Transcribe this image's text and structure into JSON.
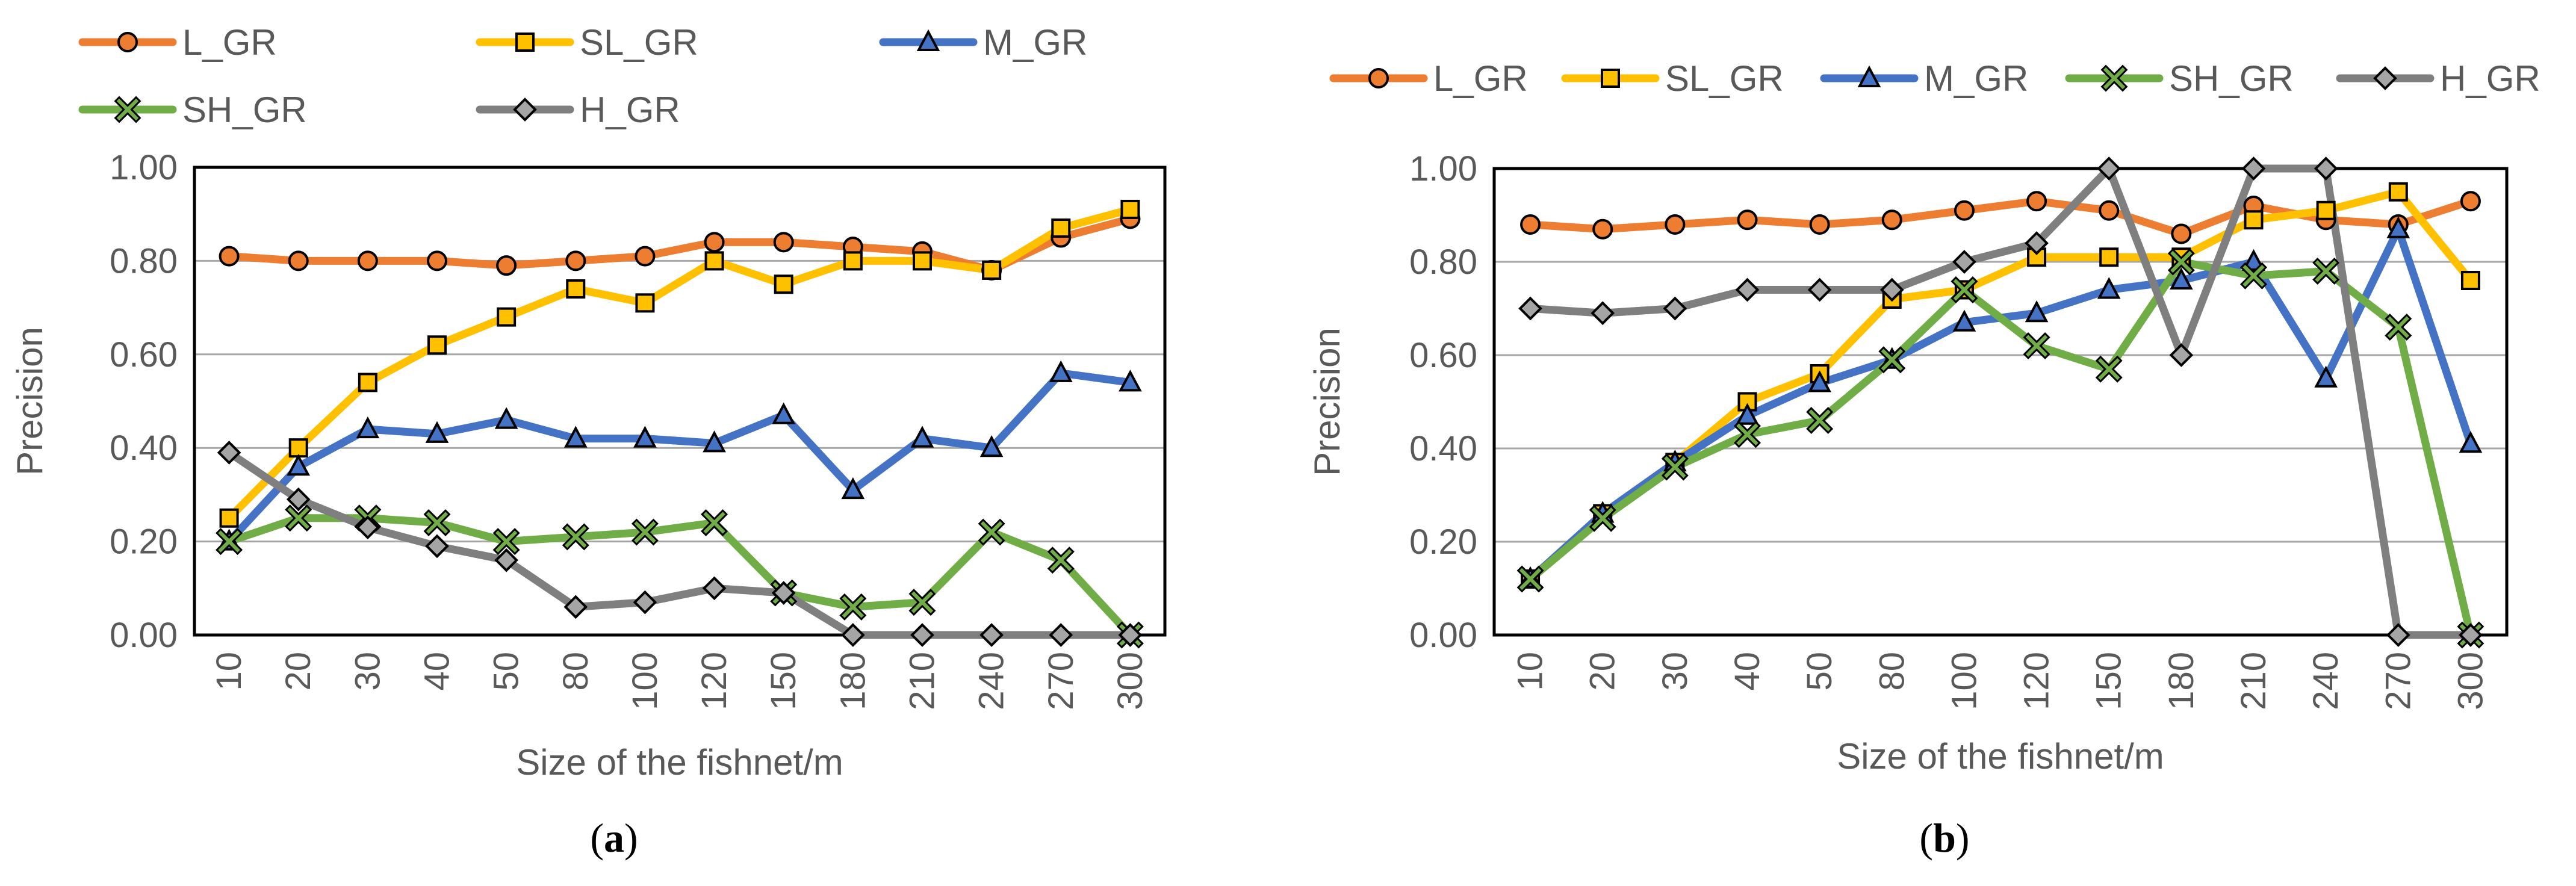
{
  "figure": {
    "caption_a": {
      "open": "(",
      "letter": "a",
      "close": ")"
    },
    "caption_b": {
      "open": "(",
      "letter": "b",
      "close": ")"
    }
  },
  "colors": {
    "L_GR": "#ED7D31",
    "SL_GR": "#FFC000",
    "M_GR": "#4472C4",
    "SH_GR": "#70AD47",
    "H_GR": "#7F7F7F",
    "marker_fill_L": "#ED7D31",
    "marker_fill_SL": "#FFC000",
    "marker_fill_M": "#4472C4",
    "marker_fill_SH": "#70AD47",
    "marker_fill_H": "#A5A5A5",
    "gridline": "#A6A6A6",
    "frame": "#000000"
  },
  "chart_data": [
    {
      "id": "a",
      "type": "line",
      "title": "",
      "xlabel": "Size of the fishnet/m",
      "ylabel": "Precision",
      "ylim": [
        0,
        1
      ],
      "yticks": [
        "0.00",
        "0.20",
        "0.40",
        "0.60",
        "0.80",
        "1.00"
      ],
      "categories": [
        "10",
        "20",
        "30",
        "40",
        "50",
        "80",
        "100",
        "120",
        "150",
        "180",
        "210",
        "240",
        "270",
        "300"
      ],
      "legend_position": "top",
      "series": [
        {
          "name": "L_GR",
          "marker": "circle",
          "values": [
            0.81,
            0.8,
            0.8,
            0.8,
            0.79,
            0.8,
            0.81,
            0.84,
            0.84,
            0.83,
            0.82,
            0.78,
            0.85,
            0.89
          ]
        },
        {
          "name": "SL_GR",
          "marker": "square",
          "values": [
            0.25,
            0.4,
            0.54,
            0.62,
            0.68,
            0.74,
            0.71,
            0.8,
            0.75,
            0.8,
            0.8,
            0.78,
            0.87,
            0.91
          ]
        },
        {
          "name": "M_GR",
          "marker": "triangle",
          "values": [
            0.2,
            0.36,
            0.44,
            0.43,
            0.46,
            0.42,
            0.42,
            0.41,
            0.47,
            0.31,
            0.42,
            0.4,
            0.56,
            0.54
          ]
        },
        {
          "name": "SH_GR",
          "marker": "x",
          "values": [
            0.2,
            0.25,
            0.25,
            0.24,
            0.2,
            0.21,
            0.22,
            0.24,
            0.09,
            0.06,
            0.07,
            0.22,
            0.16,
            0.0
          ]
        },
        {
          "name": "H_GR",
          "marker": "diamond",
          "values": [
            0.39,
            0.29,
            0.23,
            0.19,
            0.16,
            0.06,
            0.07,
            0.1,
            0.09,
            0.0,
            0.0,
            0.0,
            0.0,
            0.0
          ]
        }
      ]
    },
    {
      "id": "b",
      "type": "line",
      "title": "",
      "xlabel": "Size of the fishnet/m",
      "ylabel": "Precision",
      "ylim": [
        0,
        1
      ],
      "yticks": [
        "0.00",
        "0.20",
        "0.40",
        "0.60",
        "0.80",
        "1.00"
      ],
      "categories": [
        "10",
        "20",
        "30",
        "40",
        "50",
        "80",
        "100",
        "120",
        "150",
        "180",
        "210",
        "240",
        "270",
        "300"
      ],
      "legend_position": "top",
      "series": [
        {
          "name": "L_GR",
          "marker": "circle",
          "values": [
            0.88,
            0.87,
            0.88,
            0.89,
            0.88,
            0.89,
            0.91,
            0.93,
            0.91,
            0.86,
            0.92,
            0.89,
            0.88,
            0.93
          ]
        },
        {
          "name": "SL_GR",
          "marker": "square",
          "values": [
            0.12,
            0.26,
            0.37,
            0.5,
            0.56,
            0.72,
            0.74,
            0.81,
            0.81,
            0.81,
            0.89,
            0.91,
            0.95,
            0.76
          ]
        },
        {
          "name": "M_GR",
          "marker": "triangle",
          "values": [
            0.12,
            0.26,
            0.37,
            0.47,
            0.54,
            0.59,
            0.67,
            0.69,
            0.74,
            0.76,
            0.8,
            0.55,
            0.87,
            0.41
          ]
        },
        {
          "name": "SH_GR",
          "marker": "x",
          "values": [
            0.12,
            0.25,
            0.36,
            0.43,
            0.46,
            0.59,
            0.74,
            0.62,
            0.57,
            0.8,
            0.77,
            0.78,
            0.66,
            0.0
          ]
        },
        {
          "name": "H_GR",
          "marker": "diamond",
          "values": [
            0.7,
            0.69,
            0.7,
            0.74,
            0.74,
            0.74,
            0.8,
            0.84,
            1.0,
            0.6,
            1.0,
            1.0,
            0.0,
            0.0
          ]
        }
      ]
    }
  ]
}
